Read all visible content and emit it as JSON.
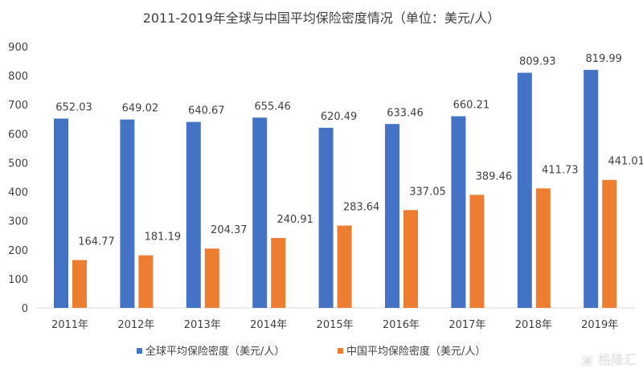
{
  "chart_data": {
    "type": "bar",
    "title": "2011-2019年全球与中国平均保险密度情况（单位：美元/人）",
    "categories": [
      "2011年",
      "2012年",
      "2013年",
      "2014年",
      "2015年",
      "2016年",
      "2017年",
      "2018年",
      "2019年"
    ],
    "series": [
      {
        "name": "全球平均保险密度（美元/人）",
        "color": "#4472C4",
        "values": [
          652.03,
          649.02,
          640.67,
          655.46,
          620.49,
          633.46,
          660.21,
          809.93,
          819.99
        ]
      },
      {
        "name": "中国平均保险密度（美元/人）",
        "color": "#ED7D31",
        "values": [
          164.77,
          181.19,
          204.37,
          240.91,
          283.64,
          337.05,
          389.46,
          411.73,
          441.01
        ]
      }
    ],
    "yticks": [
      0,
      100,
      200,
      300,
      400,
      500,
      600,
      700,
      800,
      900
    ],
    "ylim": [
      0,
      900
    ],
    "xlabel": "",
    "ylabel": "",
    "legend": "bottom",
    "grid": false
  },
  "watermark": "格隆汇"
}
